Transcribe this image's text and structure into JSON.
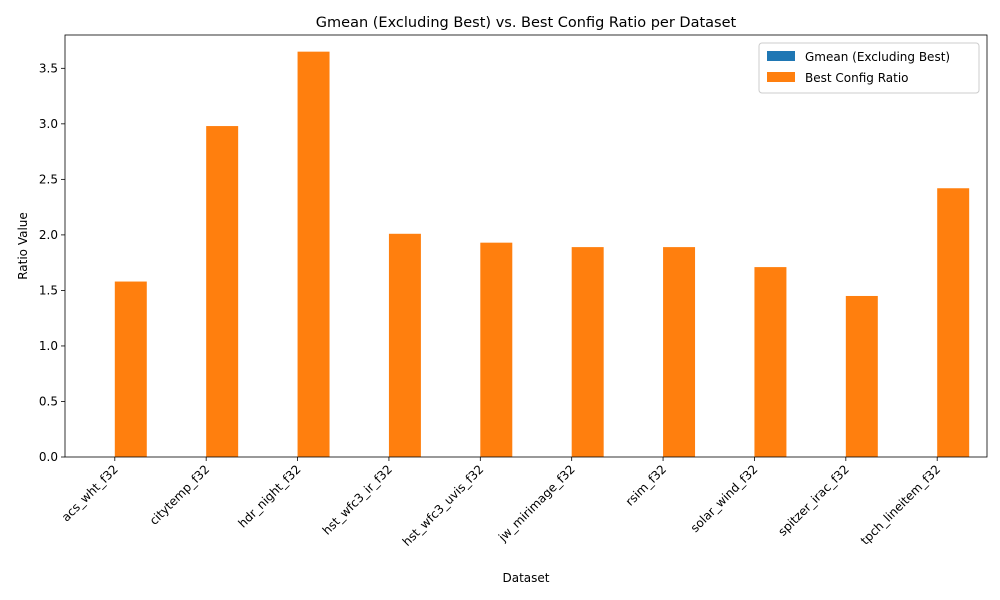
{
  "chart_data": {
    "type": "bar",
    "title": "Gmean (Excluding Best) vs. Best Config Ratio per Dataset",
    "xlabel": "Dataset",
    "ylabel": "Ratio Value",
    "ylim": [
      0,
      3.8
    ],
    "yticks": [
      "0.0",
      "0.5",
      "1.0",
      "1.5",
      "2.0",
      "2.5",
      "3.0",
      "3.5"
    ],
    "legend_position": "top-right",
    "grid": false,
    "categories": [
      "acs_wht_f32",
      "citytemp_f32",
      "hdr_night_f32",
      "hst_wfc3_ir_f32",
      "hst_wfc3_uvis_f32",
      "jw_mirimage_f32",
      "rsim_f32",
      "solar_wind_f32",
      "spitzer_irac_f32",
      "tpch_lineitem_f32"
    ],
    "series": [
      {
        "name": "Gmean (Excluding Best)",
        "color": "#1f77b4",
        "values": [
          0,
          0,
          0,
          0,
          0,
          0,
          0,
          0,
          0,
          0
        ]
      },
      {
        "name": "Best Config Ratio",
        "color": "#ff7f0e",
        "values": [
          1.58,
          2.98,
          3.65,
          2.01,
          1.93,
          1.89,
          1.89,
          1.71,
          1.45,
          2.42
        ]
      }
    ]
  }
}
